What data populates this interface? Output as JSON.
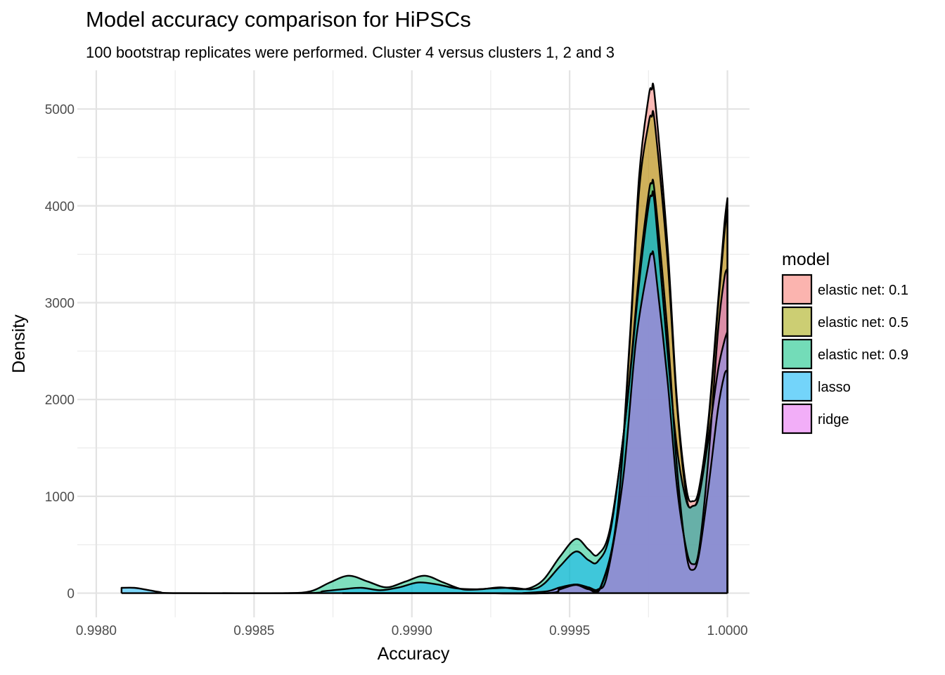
{
  "chart_data": {
    "type": "area",
    "title": "Model accuracy comparison for HiPSCs",
    "subtitle": "100 bootstrap replicates were performed. Cluster 4 versus clusters 1, 2 and 3",
    "xlabel": "Accuracy",
    "ylabel": "Density",
    "xlim": [
      0.99794,
      1.00007
    ],
    "ylim": [
      -250,
      5400
    ],
    "x_ticks": [
      0.998,
      0.9985,
      0.999,
      0.9995,
      1.0
    ],
    "x_tick_labels": [
      "0.9980",
      "0.9985",
      "0.9990",
      "0.9995",
      "1.0000"
    ],
    "y_ticks": [
      0,
      1000,
      2000,
      3000,
      4000,
      5000
    ],
    "y_tick_labels": [
      "0",
      "1000",
      "2000",
      "3000",
      "4000",
      "5000"
    ],
    "grid": true,
    "legend": {
      "title": "model",
      "position": "right"
    },
    "series": [
      {
        "name": "elastic net: 0.1",
        "color": "#F8766D",
        "points": [
          [
            0.99878,
            0
          ],
          [
            0.99915,
            0
          ],
          [
            0.99943,
            0
          ],
          [
            0.99947,
            50
          ],
          [
            0.99952,
            90
          ],
          [
            0.99956,
            50
          ],
          [
            0.9996,
            80
          ],
          [
            0.99965,
            800
          ],
          [
            0.99969,
            2600
          ],
          [
            0.99972,
            4300
          ],
          [
            0.99975,
            5120
          ],
          [
            0.99976,
            5200
          ],
          [
            0.99977,
            5120
          ],
          [
            0.99981,
            3600
          ],
          [
            0.99984,
            2000
          ],
          [
            0.99987,
            1080
          ],
          [
            0.99989,
            950
          ],
          [
            0.99991,
            1080
          ],
          [
            0.99994,
            1800
          ],
          [
            0.99997,
            3000
          ],
          [
            0.99999,
            3800
          ],
          [
            1.0,
            4080
          ]
        ]
      },
      {
        "name": "elastic net: 0.5",
        "color": "#A3A500",
        "points": [
          [
            0.99878,
            0
          ],
          [
            0.99915,
            0
          ],
          [
            0.99943,
            0
          ],
          [
            0.99947,
            40
          ],
          [
            0.99952,
            85
          ],
          [
            0.99956,
            40
          ],
          [
            0.9996,
            70
          ],
          [
            0.99965,
            780
          ],
          [
            0.99969,
            2550
          ],
          [
            0.99972,
            4150
          ],
          [
            0.99975,
            4850
          ],
          [
            0.99976,
            4920
          ],
          [
            0.99977,
            4850
          ],
          [
            0.99981,
            3450
          ],
          [
            0.99984,
            1950
          ],
          [
            0.99987,
            1000
          ],
          [
            0.99989,
            900
          ],
          [
            0.99991,
            1030
          ],
          [
            0.99994,
            1750
          ],
          [
            0.99997,
            2950
          ],
          [
            0.99999,
            3700
          ],
          [
            1.0,
            3960
          ]
        ]
      },
      {
        "name": "elastic net: 0.9",
        "color": "#00BF7D",
        "points": [
          [
            0.9984,
            0
          ],
          [
            0.9986,
            0
          ],
          [
            0.99868,
            20
          ],
          [
            0.99874,
            110
          ],
          [
            0.9988,
            180
          ],
          [
            0.99886,
            120
          ],
          [
            0.99892,
            60
          ],
          [
            0.99898,
            120
          ],
          [
            0.99904,
            180
          ],
          [
            0.9991,
            110
          ],
          [
            0.99916,
            40
          ],
          [
            0.99922,
            40
          ],
          [
            0.99928,
            60
          ],
          [
            0.99934,
            40
          ],
          [
            0.99938,
            60
          ],
          [
            0.99942,
            150
          ],
          [
            0.99947,
            380
          ],
          [
            0.99952,
            560
          ],
          [
            0.99956,
            450
          ],
          [
            0.99959,
            400
          ],
          [
            0.99963,
            700
          ],
          [
            0.99968,
            1900
          ],
          [
            0.99972,
            3300
          ],
          [
            0.99975,
            4120
          ],
          [
            0.99976,
            4230
          ],
          [
            0.99977,
            4120
          ],
          [
            0.99981,
            2700
          ],
          [
            0.99984,
            1300
          ],
          [
            0.99987,
            400
          ],
          [
            0.99989,
            240
          ],
          [
            0.99991,
            400
          ],
          [
            0.99994,
            1100
          ],
          [
            0.99997,
            1900
          ],
          [
            0.99999,
            2250
          ],
          [
            1.0,
            2300
          ]
        ]
      },
      {
        "name": "lasso",
        "color": "#00B0F6",
        "points": [
          [
            0.99808,
            55
          ],
          [
            0.99812,
            55
          ],
          [
            0.99816,
            35
          ],
          [
            0.9982,
            12
          ],
          [
            0.99826,
            0
          ],
          [
            0.99866,
            0
          ],
          [
            0.99872,
            20
          ],
          [
            0.99878,
            40
          ],
          [
            0.99884,
            55
          ],
          [
            0.9989,
            30
          ],
          [
            0.99896,
            60
          ],
          [
            0.99902,
            110
          ],
          [
            0.99908,
            90
          ],
          [
            0.99914,
            50
          ],
          [
            0.9992,
            40
          ],
          [
            0.99926,
            50
          ],
          [
            0.99932,
            55
          ],
          [
            0.99938,
            40
          ],
          [
            0.99942,
            100
          ],
          [
            0.99947,
            280
          ],
          [
            0.99952,
            430
          ],
          [
            0.99956,
            340
          ],
          [
            0.99959,
            330
          ],
          [
            0.99963,
            650
          ],
          [
            0.99968,
            1900
          ],
          [
            0.99972,
            3200
          ],
          [
            0.99975,
            4000
          ],
          [
            0.99976,
            4100
          ],
          [
            0.99977,
            4000
          ],
          [
            0.99981,
            2500
          ],
          [
            0.99984,
            1500
          ],
          [
            0.99987,
            950
          ],
          [
            0.99989,
            900
          ],
          [
            0.99991,
            1000
          ],
          [
            0.99994,
            1600
          ],
          [
            0.99997,
            2300
          ],
          [
            0.99999,
            2600
          ],
          [
            1.0,
            2700
          ]
        ]
      },
      {
        "name": "ridge",
        "color": "#E76BF3",
        "points": [
          [
            0.99935,
            0
          ],
          [
            0.99943,
            20
          ],
          [
            0.99947,
            60
          ],
          [
            0.99952,
            90
          ],
          [
            0.99956,
            60
          ],
          [
            0.99959,
            40
          ],
          [
            0.99962,
            200
          ],
          [
            0.99967,
            1200
          ],
          [
            0.99971,
            2600
          ],
          [
            0.99975,
            3400
          ],
          [
            0.99976,
            3500
          ],
          [
            0.99977,
            3400
          ],
          [
            0.99981,
            2200
          ],
          [
            0.99984,
            1100
          ],
          [
            0.99987,
            450
          ],
          [
            0.99989,
            300
          ],
          [
            0.99991,
            450
          ],
          [
            0.99994,
            1400
          ],
          [
            0.99997,
            2700
          ],
          [
            0.99999,
            3250
          ],
          [
            1.0,
            3350
          ]
        ]
      }
    ]
  }
}
